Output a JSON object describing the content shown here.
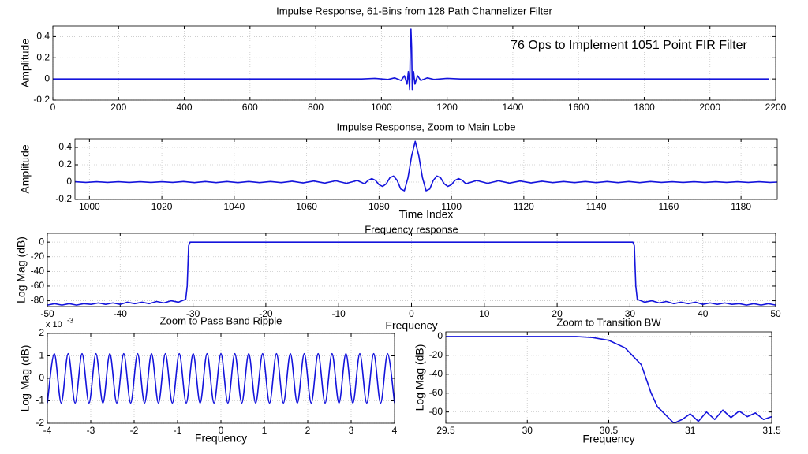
{
  "chart_data": [
    {
      "type": "line",
      "title": "Impulse Response, 61-Bins from 128 Path Channelizer Filter",
      "y_label": "Amplitude",
      "annotation": "76 Ops to Implement 1051 Point FIR Filter",
      "x": [
        0,
        940,
        980,
        1020,
        1040,
        1060,
        1070,
        1078,
        1082,
        1086,
        1088,
        1090,
        1092,
        1094,
        1098,
        1102,
        1110,
        1120,
        1140,
        1160,
        1200,
        1240,
        2180
      ],
      "values": [
        0,
        0,
        0.005,
        -0.005,
        0.01,
        -0.015,
        0.03,
        -0.05,
        0.07,
        -0.1,
        0.3,
        0.47,
        0.3,
        -0.1,
        0.07,
        -0.05,
        0.03,
        -0.015,
        0.01,
        -0.005,
        0.005,
        0,
        0
      ],
      "color": "#1414dc",
      "grid": true,
      "xlim": [
        0,
        2200
      ],
      "xticks": [
        0,
        200,
        400,
        600,
        800,
        1000,
        1200,
        1400,
        1600,
        1800,
        2000,
        2200
      ],
      "ylim": [
        -0.2,
        0.5
      ],
      "yticks": [
        -0.2,
        0,
        0.2,
        0.4
      ]
    },
    {
      "type": "line",
      "title": "Impulse Response, Zoom to Main Lobe",
      "x_label": "Time Index",
      "y_label": "Amplitude",
      "x": [
        996,
        999,
        1002,
        1005,
        1008,
        1011,
        1014,
        1017,
        1020,
        1023,
        1026,
        1029,
        1032,
        1035,
        1038,
        1041,
        1044,
        1047,
        1050,
        1053,
        1056,
        1059,
        1062,
        1065,
        1068,
        1071,
        1074,
        1076,
        1077,
        1078,
        1079,
        1080,
        1081,
        1082,
        1083,
        1084,
        1085,
        1086,
        1087,
        1088,
        1089,
        1090,
        1091,
        1092,
        1093,
        1094,
        1095,
        1096,
        1097,
        1098,
        1099,
        1100,
        1101,
        1102,
        1103,
        1104,
        1107,
        1110,
        1113,
        1116,
        1119,
        1122,
        1125,
        1128,
        1131,
        1134,
        1137,
        1140,
        1143,
        1146,
        1149,
        1152,
        1155,
        1158,
        1161,
        1164,
        1167,
        1170,
        1173,
        1176,
        1179,
        1182,
        1185,
        1188,
        1190
      ],
      "values": [
        0.004,
        -0.004,
        0.004,
        -0.004,
        0.004,
        -0.004,
        0.004,
        -0.004,
        0.004,
        -0.004,
        0.006,
        -0.006,
        0.006,
        -0.006,
        0.006,
        -0.006,
        0.006,
        -0.006,
        0.006,
        -0.006,
        0.01,
        -0.01,
        0.012,
        -0.012,
        0.015,
        -0.015,
        0.018,
        -0.02,
        0.02,
        0.04,
        0.02,
        -0.03,
        -0.05,
        -0.02,
        0.05,
        0.07,
        0.02,
        -0.08,
        -0.1,
        0.05,
        0.3,
        0.47,
        0.3,
        0.05,
        -0.1,
        -0.08,
        0.02,
        0.07,
        0.05,
        -0.02,
        -0.05,
        -0.03,
        0.02,
        0.04,
        0.02,
        -0.02,
        0.018,
        -0.015,
        0.015,
        -0.012,
        0.012,
        -0.01,
        0.01,
        -0.006,
        0.006,
        -0.006,
        0.006,
        -0.006,
        0.006,
        -0.006,
        0.006,
        -0.006,
        0.006,
        -0.004,
        0.004,
        -0.004,
        0.004,
        -0.004,
        0.004,
        -0.004,
        0.004,
        -0.004,
        0.004,
        -0.004,
        0
      ],
      "color": "#1414dc",
      "grid": true,
      "xlim": [
        996,
        1190
      ],
      "xticks": [
        1000,
        1020,
        1040,
        1060,
        1080,
        1100,
        1120,
        1140,
        1160,
        1180
      ],
      "ylim": [
        -0.2,
        0.5
      ],
      "yticks": [
        -0.2,
        0,
        0.2,
        0.4
      ]
    },
    {
      "type": "line",
      "title": "Frequency response",
      "x_label": "Frequency",
      "y_label": "Log Mag (dB)",
      "x": [
        -50,
        -49,
        -48,
        -47,
        -46,
        -45,
        -44,
        -43,
        -42,
        -41,
        -40,
        -39,
        -38,
        -37,
        -36,
        -35,
        -34,
        -33,
        -32,
        -31,
        -30.8,
        -30.6,
        -30.4,
        30.4,
        30.6,
        30.8,
        31,
        32,
        33,
        34,
        35,
        36,
        37,
        38,
        39,
        40,
        41,
        42,
        43,
        44,
        45,
        46,
        47,
        48,
        49,
        50
      ],
      "values": [
        -86,
        -84,
        -86,
        -84,
        -86,
        -84,
        -85,
        -83,
        -85,
        -83,
        -85,
        -82,
        -84,
        -82,
        -84,
        -81,
        -83,
        -80,
        -82,
        -78,
        -60,
        -5,
        0,
        0,
        -5,
        -60,
        -78,
        -82,
        -80,
        -83,
        -81,
        -84,
        -82,
        -84,
        -82,
        -85,
        -83,
        -85,
        -83,
        -85,
        -84,
        -86,
        -84,
        -86,
        -84,
        -86
      ],
      "color": "#1414dc",
      "grid": true,
      "xlim": [
        -50,
        50
      ],
      "xticks": [
        -50,
        -40,
        -30,
        -20,
        -10,
        0,
        10,
        20,
        30,
        40,
        50
      ],
      "ylim": [
        -88,
        12
      ],
      "yticks": [
        -80,
        -60,
        -40,
        -20,
        0
      ]
    },
    {
      "type": "line",
      "title": "Zoom to Pass Band Ripple",
      "x_label": "Frequency",
      "y_label": "Log Mag (dB)",
      "axis_multiplier": {
        "base": "x 10",
        "exponent": "-3"
      },
      "x": [
        -4,
        -3.84,
        -3.68,
        -3.52,
        -3.36,
        -3.2,
        -3.04,
        -2.88,
        -2.72,
        -2.56,
        -2.4,
        -2.24,
        -2.08,
        -1.92,
        -1.76,
        -1.6,
        -1.44,
        -1.28,
        -1.12,
        -0.96,
        -0.8,
        -0.64,
        -0.48,
        -0.32,
        -0.16,
        0,
        0.16,
        0.32,
        0.48,
        0.64,
        0.8,
        0.96,
        1.12,
        1.28,
        1.44,
        1.6,
        1.76,
        1.92,
        2.08,
        2.24,
        2.4,
        2.56,
        2.72,
        2.88,
        3.04,
        3.2,
        3.36,
        3.52,
        3.68,
        3.84,
        4
      ],
      "values": [
        -1.1,
        1.1,
        -1.1,
        1.1,
        -1.1,
        1.1,
        -1.1,
        1.1,
        -1.1,
        1.1,
        -1.1,
        1.1,
        -1.1,
        1.1,
        -1.1,
        1.1,
        -1.1,
        1.1,
        -1.1,
        1.1,
        -1.1,
        1.1,
        -1.1,
        1.1,
        -1.1,
        1.1,
        -1.1,
        1.1,
        -1.1,
        1.1,
        -1.1,
        1.1,
        -1.1,
        1.1,
        -1.1,
        1.1,
        -1.1,
        1.1,
        -1.1,
        1.1,
        -1.1,
        1.1,
        -1.1,
        1.1,
        -1.1,
        1.1,
        -1.1,
        1.1,
        -1.1,
        1.1,
        -1.1
      ],
      "color": "#1414dc",
      "grid": true,
      "xlim": [
        -4,
        4
      ],
      "xticks": [
        -4,
        -3,
        -2,
        -1,
        0,
        1,
        2,
        3,
        4
      ],
      "ylim": [
        -2,
        2
      ],
      "yticks": [
        -2,
        -1,
        0,
        1,
        2
      ]
    },
    {
      "type": "line",
      "title": "Zoom to Transition BW",
      "x_label": "Frequency",
      "y_label": "Log Mag (dB)",
      "x": [
        29.5,
        30.3,
        30.4,
        30.5,
        30.6,
        30.7,
        30.76,
        30.8,
        30.82,
        30.86,
        30.9,
        30.95,
        31,
        31.05,
        31.1,
        31.15,
        31.2,
        31.25,
        31.3,
        31.35,
        31.4,
        31.45,
        31.5
      ],
      "values": [
        0,
        0,
        -1,
        -4,
        -12,
        -30,
        -60,
        -75,
        -78,
        -85,
        -92,
        -88,
        -82,
        -90,
        -80,
        -88,
        -78,
        -86,
        -79,
        -85,
        -81,
        -88,
        -85
      ],
      "color": "#1414dc",
      "grid": true,
      "xlim": [
        29.5,
        31.5
      ],
      "xticks": [
        29.5,
        30,
        30.5,
        31,
        31.5
      ],
      "ylim": [
        -92,
        5
      ],
      "yticks": [
        -80,
        -60,
        -40,
        -20,
        0
      ]
    }
  ]
}
